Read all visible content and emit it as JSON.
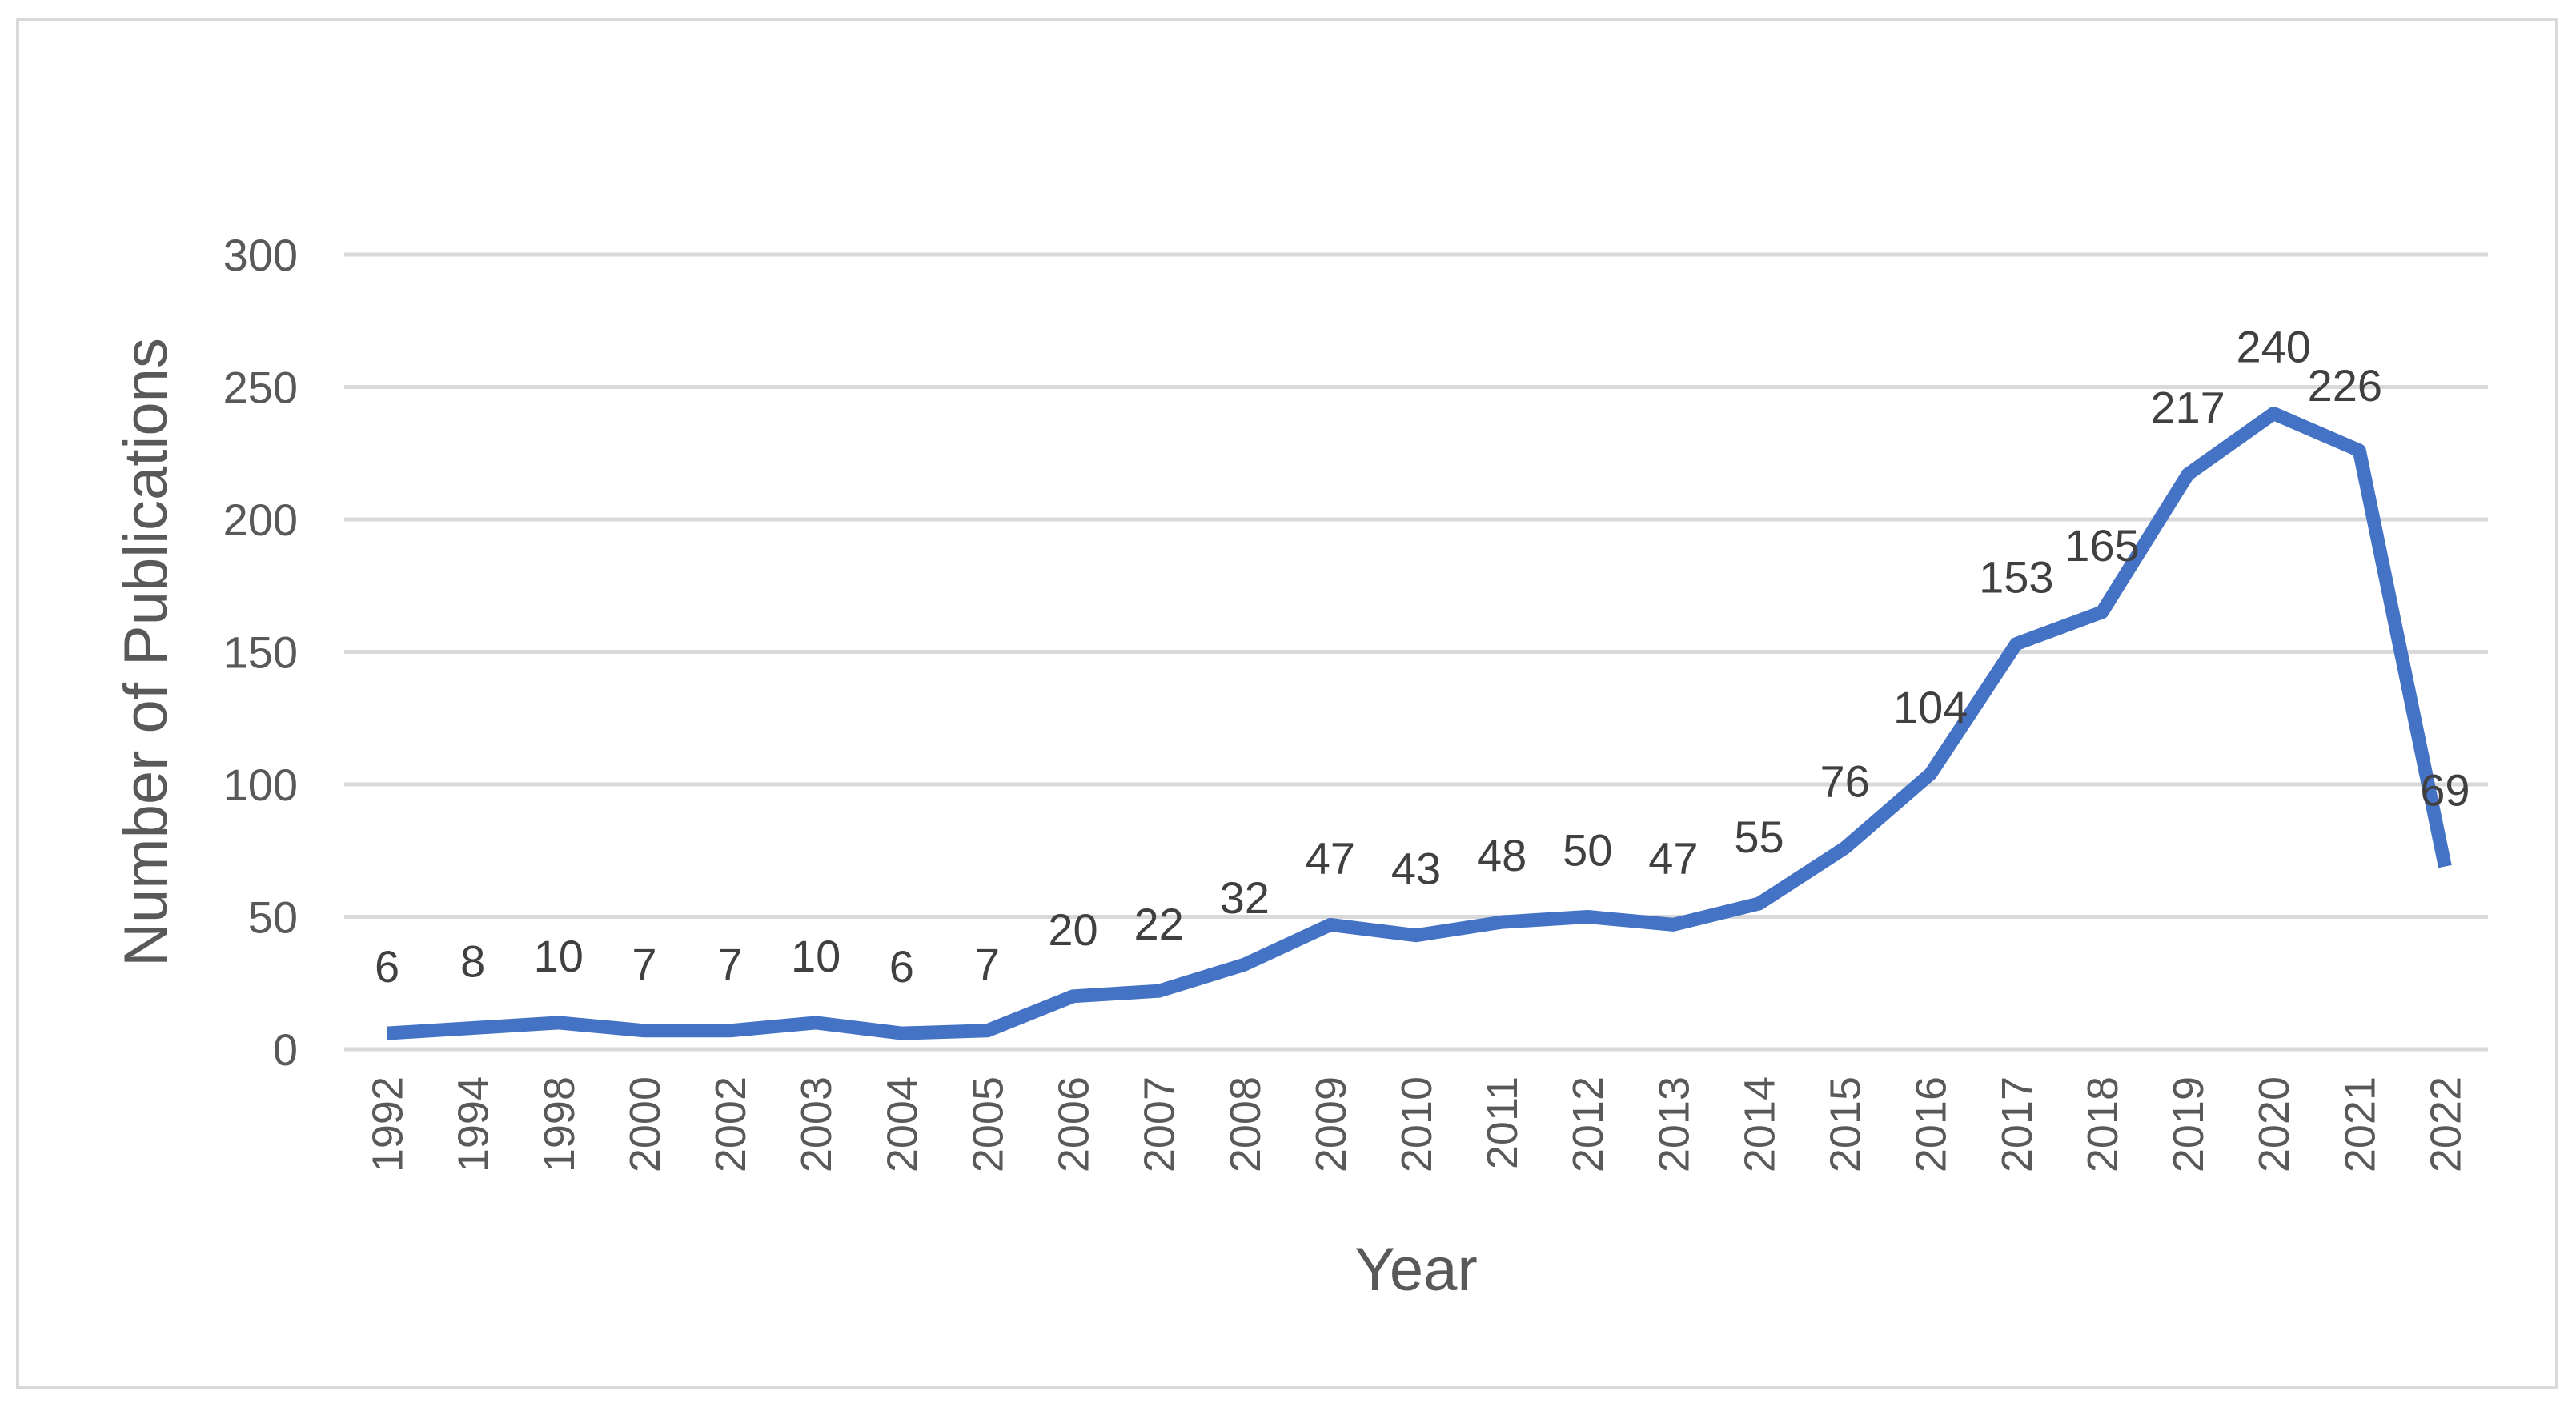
{
  "chart_data": {
    "type": "line",
    "title": "",
    "xlabel": "Year",
    "ylabel": "Number of Publications",
    "ylim": [
      0,
      300
    ],
    "yticks": [
      0,
      50,
      100,
      150,
      200,
      250,
      300
    ],
    "grid": true,
    "legend": "none",
    "categories": [
      "1992",
      "1994",
      "1998",
      "2000",
      "2002",
      "2003",
      "2004",
      "2005",
      "2006",
      "2007",
      "2008",
      "2009",
      "2010",
      "2011",
      "2012",
      "2013",
      "2014",
      "2015",
      "2016",
      "2017",
      "2018",
      "2019",
      "2020",
      "2021",
      "2022"
    ],
    "series": [
      {
        "values": [
          6,
          8,
          10,
          7,
          7,
          10,
          6,
          7,
          20,
          22,
          32,
          47,
          43,
          48,
          50,
          47,
          55,
          76,
          104,
          153,
          165,
          217,
          240,
          226,
          69
        ],
        "color": "#4472c4"
      }
    ],
    "data_labels": [
      "6",
      "8",
      "10",
      "7",
      "7",
      "10",
      "6",
      "7",
      "20",
      "22",
      "32",
      "47",
      "43",
      "48",
      "50",
      "47",
      "55",
      "76",
      "104",
      "153",
      "165",
      "217",
      "240",
      "226",
      "69"
    ],
    "colors": {
      "line": "#4472c4",
      "gridline": "#d9d9d9",
      "axis_line": "#d9d9d9",
      "text": "#595959",
      "frame": "#d9d9d9"
    }
  }
}
